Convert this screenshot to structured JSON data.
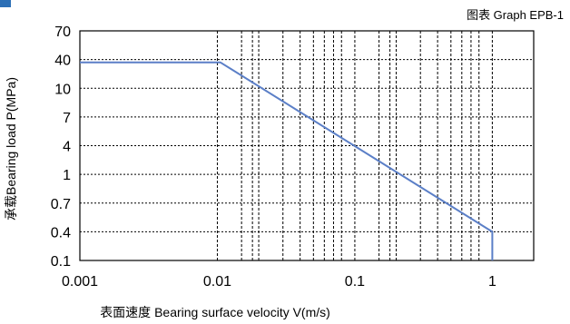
{
  "header": {
    "title_fragment": "",
    "caption": "图表 Graph EPB-1"
  },
  "colors": {
    "line": "#5b7fc7",
    "grid": "#000000",
    "frame": "#000000",
    "header_bar": "#2c6fb6"
  },
  "chart_data": {
    "type": "line",
    "title": "图表 Graph EPB-1",
    "xlabel": "表面速度 Bearing surface velocity V(m/s)",
    "ylabel": "承载Bearing load P(MPa)",
    "x_scale": "log",
    "xlim": [
      0.001,
      2
    ],
    "x_ticks": [
      0.001,
      0.01,
      0.1,
      1
    ],
    "x_tick_labels": [
      "0.001",
      "0.01",
      "0.1",
      "1"
    ],
    "x_minor_grid": [
      0.015,
      0.018,
      0.02,
      0.03,
      0.04,
      0.05,
      0.06,
      0.07,
      0.08,
      0.15,
      0.18,
      0.2,
      0.3,
      0.4,
      0.5,
      0.6,
      0.7,
      0.8
    ],
    "y_scale": "categorical-ticks",
    "y_ticks": [
      "70",
      "40",
      "10",
      "7",
      "4",
      "1",
      "0.7",
      "0.4",
      "0.1"
    ],
    "grid": true,
    "series": [
      {
        "points": [
          {
            "x": 0.001,
            "y": 35
          },
          {
            "x": 0.0105,
            "y": 35
          },
          {
            "x": 1.0,
            "y": 0.4
          },
          {
            "x": 1.0,
            "y": 0.1
          }
        ]
      }
    ]
  }
}
